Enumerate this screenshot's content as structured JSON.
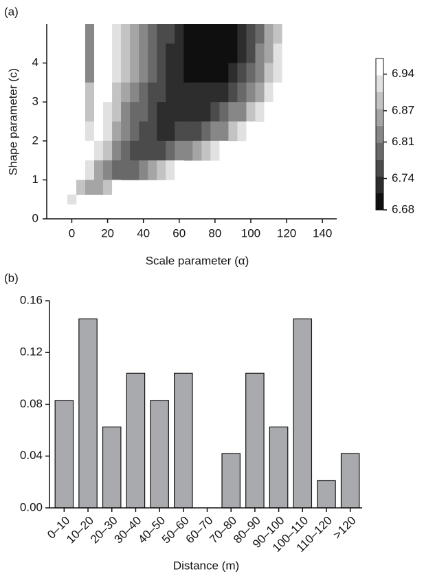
{
  "chart_data": [
    {
      "type": "heatmap",
      "panel_label": "(a)",
      "xlabel": "Scale parameter (α)",
      "ylabel": "Shape parameter (c)",
      "x": [
        0,
        5,
        10,
        15,
        20,
        25,
        30,
        35,
        40,
        45,
        50,
        55,
        60,
        65,
        70,
        75,
        80,
        85,
        90,
        95,
        100,
        105,
        110,
        115,
        120,
        125
      ],
      "y": [
        4.75,
        4.25,
        3.75,
        3.25,
        2.75,
        2.25,
        1.75,
        1.25,
        0.75,
        0.5
      ],
      "z": [
        [
          null,
          null,
          6.82,
          6.97,
          6.96,
          6.93,
          6.9,
          6.86,
          6.83,
          6.8,
          6.77,
          6.75,
          6.72,
          6.71,
          6.69,
          6.68,
          6.68,
          6.68,
          6.69,
          6.72,
          6.76,
          6.8,
          6.85,
          6.9,
          6.94,
          6.97
        ],
        [
          null,
          null,
          6.82,
          6.97,
          6.96,
          6.93,
          6.89,
          6.86,
          6.82,
          6.79,
          6.77,
          6.74,
          6.72,
          6.71,
          6.69,
          6.68,
          6.68,
          6.69,
          6.7,
          6.73,
          6.77,
          6.81,
          6.86,
          6.91,
          6.95,
          null
        ],
        [
          null,
          null,
          6.82,
          6.97,
          6.95,
          6.92,
          6.88,
          6.85,
          6.81,
          6.78,
          6.76,
          6.73,
          6.72,
          6.71,
          6.69,
          6.69,
          6.69,
          6.7,
          6.72,
          6.75,
          6.79,
          6.83,
          6.88,
          6.93,
          6.97,
          null
        ],
        [
          null,
          null,
          6.88,
          6.97,
          6.94,
          6.9,
          6.86,
          6.82,
          6.79,
          6.77,
          6.75,
          6.73,
          6.72,
          6.72,
          6.72,
          6.72,
          6.73,
          6.74,
          6.76,
          6.79,
          6.83,
          6.87,
          6.92,
          6.96,
          null,
          null
        ],
        [
          null,
          null,
          6.9,
          6.96,
          6.93,
          6.88,
          6.84,
          6.8,
          6.78,
          6.76,
          6.74,
          6.73,
          6.73,
          6.73,
          6.73,
          6.74,
          6.76,
          6.78,
          6.81,
          6.84,
          6.88,
          6.93,
          6.97,
          null,
          null,
          null
        ],
        [
          null,
          null,
          6.93,
          6.95,
          6.91,
          6.86,
          6.82,
          6.79,
          6.76,
          6.75,
          6.74,
          6.74,
          6.75,
          6.76,
          6.77,
          6.79,
          6.81,
          6.84,
          6.88,
          6.92,
          6.96,
          null,
          null,
          null,
          null,
          null
        ],
        [
          null,
          null,
          6.96,
          6.92,
          6.88,
          6.84,
          6.8,
          6.77,
          6.76,
          6.76,
          6.77,
          6.79,
          6.81,
          6.84,
          6.87,
          6.9,
          6.93,
          6.96,
          null,
          null,
          null,
          null,
          null,
          null,
          null,
          null
        ],
        [
          null,
          6.95,
          6.92,
          6.87,
          6.83,
          6.8,
          6.79,
          6.8,
          6.82,
          6.85,
          6.89,
          6.93,
          6.97,
          null,
          null,
          null,
          null,
          null,
          null,
          null,
          null,
          null,
          null,
          null,
          null,
          null
        ],
        [
          null,
          6.88,
          6.86,
          6.86,
          6.9,
          6.95,
          null,
          null,
          null,
          null,
          null,
          null,
          null,
          null,
          null,
          null,
          null,
          null,
          null,
          null,
          null,
          null,
          null,
          null,
          null,
          null
        ],
        [
          6.93,
          null,
          null,
          null,
          null,
          null,
          null,
          null,
          null,
          null,
          null,
          null,
          null,
          null,
          null,
          null,
          null,
          null,
          null,
          null,
          null,
          null,
          null,
          null,
          null,
          null
        ]
      ],
      "xlim": [
        -14,
        148
      ],
      "xticks": [
        0,
        20,
        40,
        60,
        80,
        100,
        120,
        140
      ],
      "ylim": [
        0,
        5
      ],
      "yticks": [
        0,
        1,
        2,
        3,
        4
      ],
      "clim": [
        6.68,
        6.97
      ],
      "cticks": [
        6.68,
        6.74,
        6.81,
        6.87,
        6.94
      ]
    },
    {
      "type": "bar",
      "panel_label": "(b)",
      "xlabel": "Distance (m)",
      "categories": [
        "0–10",
        "10–20",
        "20–30",
        "30–40",
        "40–50",
        "50–60",
        "60–70",
        "70–80",
        "80–90",
        "90–100",
        "100–110",
        "110–120",
        ">120"
      ],
      "values": [
        0.083,
        0.146,
        0.0625,
        0.104,
        0.083,
        0.104,
        0,
        0.042,
        0.104,
        0.0625,
        0.146,
        0.021,
        0.042
      ],
      "color": "#a9aaae",
      "ylim": [
        0,
        0.16
      ],
      "yticks": [
        {
          "value": 0,
          "label": "0.00"
        },
        {
          "value": 0.04,
          "label": "0.04"
        },
        {
          "value": 0.08,
          "label": "0.08"
        },
        {
          "value": 0.12,
          "label": "0.12"
        },
        {
          "value": 0.16,
          "label": "0.16"
        }
      ]
    }
  ]
}
